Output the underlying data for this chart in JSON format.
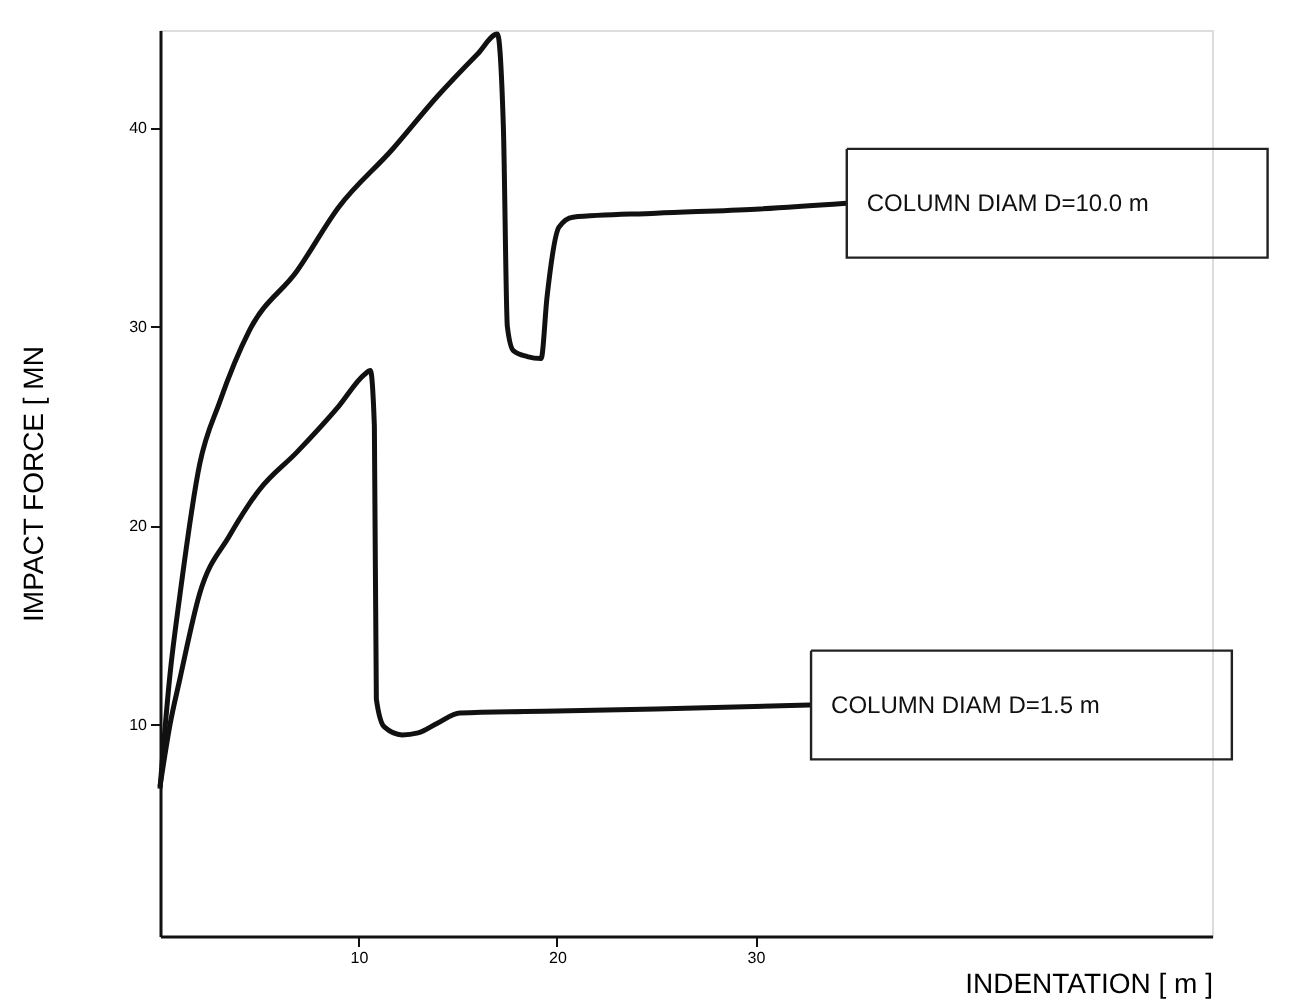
{
  "chart_data": {
    "type": "line",
    "xlabel": "INDENTATION [ m ]",
    "ylabel": "IMPACT FORCE [ MN",
    "xlim": [
      0,
      53
    ],
    "ylim": [
      -0.6,
      44.9
    ],
    "xticks": [
      10,
      20,
      30
    ],
    "yticks": [
      10,
      20,
      30,
      40
    ],
    "grid": false,
    "legend": false,
    "marker": "none",
    "line_style": "solid",
    "series": [
      {
        "name": "COLUMN DIAM D=10.0 m",
        "color": "#111111",
        "x": [
          0,
          0.5,
          1,
          2,
          3,
          4.5,
          6.9,
          9,
          11.7,
          14,
          16,
          17.0,
          17.3,
          17.5,
          17.8,
          18.5,
          19.2,
          19.5,
          20.1,
          20.8,
          25,
          30,
          34.6
        ],
        "values": [
          6.8,
          12.5,
          16.5,
          23.1,
          26.2,
          29.8,
          32.8,
          36.0,
          38.9,
          41.6,
          43.7,
          44.7,
          40.0,
          30.0,
          28.8,
          28.5,
          28.4,
          31.5,
          35.0,
          35.5,
          35.7,
          35.9,
          36.2
        ]
      },
      {
        "name": "COLUMN DIAM D=1.5 m",
        "color": "#111111",
        "x": [
          0,
          0.5,
          1,
          2,
          3.5,
          5,
          6.9,
          9,
          10.3,
          10.6,
          10.8,
          10.9,
          11.3,
          12.2,
          13.0,
          14.0,
          15.1,
          20,
          25,
          32.8
        ],
        "values": [
          6.9,
          10.0,
          12.3,
          16.6,
          19.5,
          21.8,
          23.7,
          26.0,
          27.6,
          27.8,
          25.0,
          11.3,
          9.9,
          9.5,
          9.6,
          10.1,
          10.6,
          10.7,
          10.8,
          11.0
        ]
      }
    ]
  }
}
